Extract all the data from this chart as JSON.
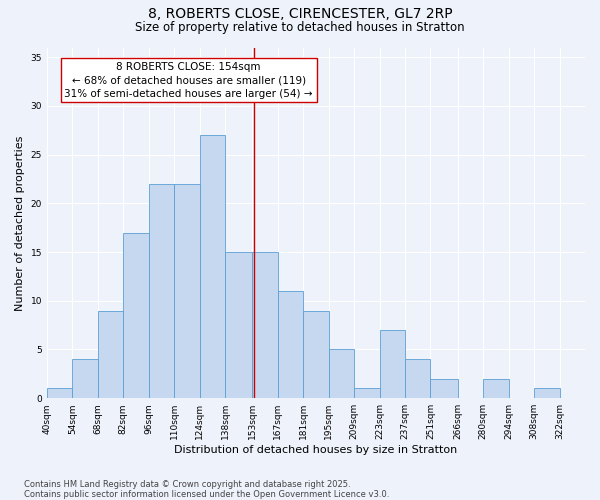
{
  "title": "8, ROBERTS CLOSE, CIRENCESTER, GL7 2RP",
  "subtitle": "Size of property relative to detached houses in Stratton",
  "xlabel": "Distribution of detached houses by size in Stratton",
  "ylabel": "Number of detached properties",
  "footer_line1": "Contains HM Land Registry data © Crown copyright and database right 2025.",
  "footer_line2": "Contains public sector information licensed under the Open Government Licence v3.0.",
  "bins": [
    "40sqm",
    "54sqm",
    "68sqm",
    "82sqm",
    "96sqm",
    "110sqm",
    "124sqm",
    "138sqm",
    "153sqm",
    "167sqm",
    "181sqm",
    "195sqm",
    "209sqm",
    "223sqm",
    "237sqm",
    "251sqm",
    "266sqm",
    "280sqm",
    "294sqm",
    "308sqm",
    "322sqm"
  ],
  "bin_edges": [
    40,
    54,
    68,
    82,
    96,
    110,
    124,
    138,
    153,
    167,
    181,
    195,
    209,
    223,
    237,
    251,
    266,
    280,
    294,
    308,
    322
  ],
  "counts": [
    1,
    4,
    9,
    17,
    22,
    22,
    27,
    15,
    15,
    11,
    9,
    5,
    1,
    7,
    4,
    2,
    0,
    2,
    0,
    1,
    0
  ],
  "bar_color": "#c5d8f0",
  "bar_edge_color": "#5a9fd4",
  "bar_edge_width": 0.6,
  "reference_line_x": 154,
  "reference_line_color": "#cc0000",
  "annotation_text": "8 ROBERTS CLOSE: 154sqm\n← 68% of detached houses are smaller (119)\n31% of semi-detached houses are larger (54) →",
  "annotation_box_color": "#cc0000",
  "annotation_fontsize": 7.5,
  "ylim": [
    0,
    36
  ],
  "yticks": [
    0,
    5,
    10,
    15,
    20,
    25,
    30,
    35
  ],
  "bg_color": "#eef2fb",
  "grid_color": "#ffffff",
  "title_fontsize": 10,
  "subtitle_fontsize": 8.5,
  "ylabel_fontsize": 8,
  "xlabel_fontsize": 8,
  "tick_fontsize": 6.5,
  "footer_fontsize": 6
}
